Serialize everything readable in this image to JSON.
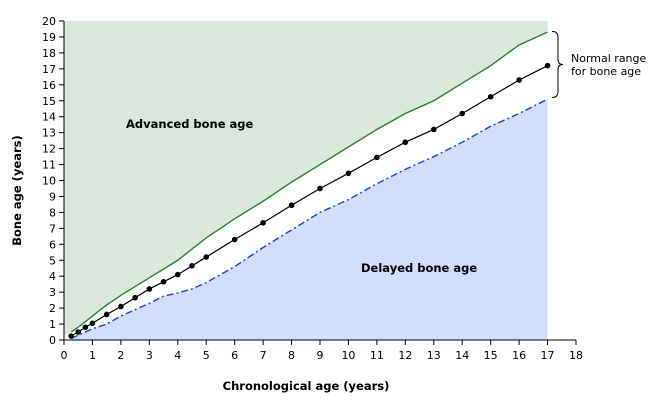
{
  "chart_data": {
    "type": "line",
    "xlabel": "Chronological age (years)",
    "ylabel": "Bone age (years)",
    "xlim": [
      0,
      18
    ],
    "ylim": [
      0,
      20
    ],
    "x_ticks": [
      0,
      1,
      2,
      3,
      4,
      5,
      6,
      7,
      8,
      9,
      10,
      11,
      12,
      13,
      14,
      15,
      16,
      17,
      18
    ],
    "y_ticks": [
      0,
      1,
      2,
      3,
      4,
      5,
      6,
      7,
      8,
      9,
      10,
      11,
      12,
      13,
      14,
      15,
      16,
      17,
      18,
      19,
      20
    ],
    "grid": false,
    "region_labels": {
      "advanced": "Advanced bone age",
      "delayed": "Delayed bone age"
    },
    "annotation": {
      "line1": "Normal range",
      "line2": "for bone age"
    },
    "colors": {
      "advanced_fill": "#dbe7dc",
      "delayed_fill": "#d4dcfc",
      "upper_line": "#2e7d32",
      "mean_line": "#000000",
      "lower_line": "#1a3fd6"
    },
    "series": [
      {
        "id": "upper",
        "style": "solid-green",
        "x": [
          0.25,
          0.5,
          1,
          1.5,
          2,
          3,
          4,
          4.5,
          5,
          6,
          7,
          8,
          9,
          10,
          11,
          12,
          13,
          14,
          15,
          16,
          17
        ],
        "values": [
          0.5,
          0.8,
          1.5,
          2.2,
          2.8,
          3.9,
          5.0,
          5.7,
          6.4,
          7.6,
          8.7,
          9.9,
          11.0,
          12.1,
          13.2,
          14.2,
          15.0,
          16.1,
          17.2,
          18.5,
          19.3
        ]
      },
      {
        "id": "mean",
        "style": "solid-black-markers",
        "x": [
          0.25,
          0.5,
          0.75,
          1,
          1.5,
          2,
          2.5,
          3,
          3.5,
          4,
          4.5,
          5,
          6,
          7,
          8,
          9,
          10,
          11,
          12,
          13,
          14,
          15,
          16,
          17
        ],
        "values": [
          0.25,
          0.5,
          0.8,
          1.05,
          1.6,
          2.1,
          2.65,
          3.2,
          3.65,
          4.1,
          4.65,
          5.2,
          6.3,
          7.35,
          8.45,
          9.5,
          10.45,
          11.45,
          12.4,
          13.2,
          14.2,
          15.25,
          16.3,
          17.2
        ]
      },
      {
        "id": "lower",
        "style": "dash-dot-blue",
        "x": [
          0.25,
          0.5,
          1,
          1.5,
          2,
          3,
          3.5,
          4,
          4.5,
          5,
          6,
          7,
          8,
          9,
          10,
          11,
          12,
          13,
          14,
          15,
          16,
          17
        ],
        "values": [
          0.1,
          0.3,
          0.7,
          1.0,
          1.5,
          2.3,
          2.75,
          2.95,
          3.2,
          3.6,
          4.6,
          5.8,
          6.9,
          8.0,
          8.8,
          9.8,
          10.7,
          11.5,
          12.4,
          13.4,
          14.2,
          15.1
        ]
      }
    ]
  }
}
